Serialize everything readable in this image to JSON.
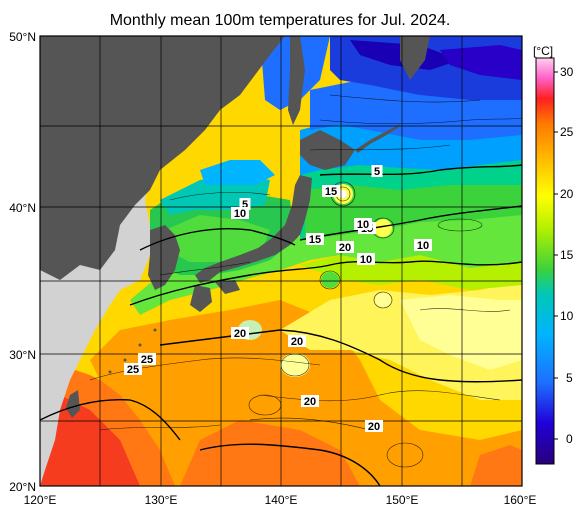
{
  "title": "Monthly mean 100m temperatures for Jul. 2024.",
  "axes": {
    "lat_labels": [
      "50°N",
      "40°N",
      "30°N",
      "20°N"
    ],
    "lon_labels": [
      "120°E",
      "130°E",
      "140°E",
      "150°E",
      "160°E"
    ]
  },
  "colorbar": {
    "unit": "[°C]",
    "ticks": [
      "30",
      "25",
      "20",
      "15",
      "10",
      "5",
      "0"
    ],
    "colors": {
      "0": "#1a00b4",
      "5": "#1e6fff",
      "10": "#00b4ff",
      "15": "#3cd23c",
      "20": "#ffff00",
      "25": "#ff8c00",
      "30": "#ff3030",
      "top": "#ff90e6"
    }
  },
  "contour_labels": [
    "5",
    "5",
    "10",
    "15",
    "15",
    "10",
    "10",
    "15",
    "20",
    "10",
    "10",
    "20",
    "20",
    "25",
    "25",
    "20",
    "20"
  ],
  "colors": {
    "land": "#555555",
    "outside_domain_land": "#d2d2d2",
    "frame": "#000000"
  }
}
